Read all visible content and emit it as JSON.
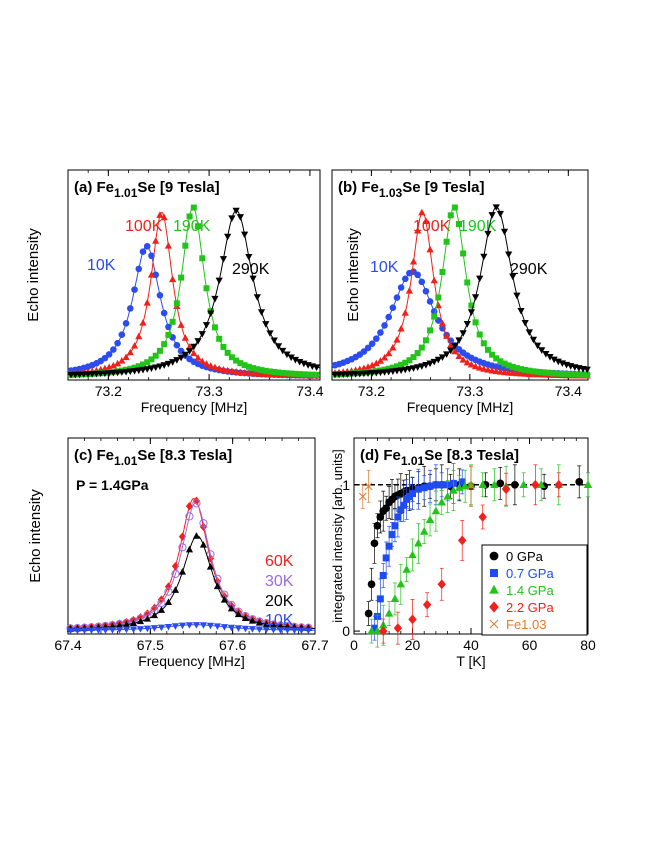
{
  "colors": {
    "k10": "#2a4cf0",
    "k100": "#f0201a",
    "k190": "#22c41a",
    "k290": "#000000",
    "k60": "#f0201a",
    "k30": "#9a6be0",
    "k20": "#000000",
    "p0": "#000000",
    "p07": "#1f4cf0",
    "p14": "#22c41a",
    "p22": "#f0201a",
    "fe103": "#e07a30"
  },
  "chart_data": [
    {
      "id": "a",
      "type": "line",
      "title_pre": "(a) Fe",
      "title_sub": "1.01",
      "title_post": "Se [9 Tesla]",
      "xlabel": "Frequency [MHz]",
      "ylabel": "Echo intensity",
      "xlim": [
        73.16,
        73.41
      ],
      "ylim": [
        0,
        1.05
      ],
      "xticks": [
        "73.2",
        "73.3",
        "73.4"
      ],
      "xtick_values": [
        73.2,
        73.3,
        73.4
      ],
      "series": [
        {
          "name": "10K",
          "center": 73.238,
          "width": 0.017,
          "peak": 0.77,
          "marker": "circle",
          "color_key": "k10"
        },
        {
          "name": "100K",
          "center": 73.253,
          "width": 0.013,
          "peak": 0.97,
          "marker": "triangle-up",
          "color_key": "k100"
        },
        {
          "name": "190K",
          "center": 73.284,
          "width": 0.014,
          "peak": 1.0,
          "marker": "square",
          "color_key": "k190"
        },
        {
          "name": "290K",
          "center": 73.327,
          "width": 0.02,
          "peak": 0.98,
          "marker": "triangle-down",
          "color_key": "k290"
        }
      ]
    },
    {
      "id": "b",
      "type": "line",
      "title_pre": "(b) Fe",
      "title_sub": "1.03",
      "title_post": "Se [9 Tesla]",
      "xlabel": "Frequency [MHz]",
      "ylabel": "Echo intensity",
      "xlim": [
        73.16,
        73.42
      ],
      "ylim": [
        0,
        1.05
      ],
      "xticks": [
        "73.2",
        "73.3",
        "73.4"
      ],
      "xtick_values": [
        73.2,
        73.3,
        73.4
      ],
      "series": [
        {
          "name": "10K",
          "center": 73.242,
          "width": 0.028,
          "peak": 0.62,
          "marker": "circle",
          "color_key": "k10"
        },
        {
          "name": "100K",
          "center": 73.252,
          "width": 0.014,
          "peak": 0.97,
          "marker": "triangle-up",
          "color_key": "k100"
        },
        {
          "name": "190K",
          "center": 73.284,
          "width": 0.015,
          "peak": 1.0,
          "marker": "square",
          "color_key": "k190"
        },
        {
          "name": "290K",
          "center": 73.327,
          "width": 0.02,
          "peak": 1.0,
          "marker": "triangle-down",
          "color_key": "k290"
        }
      ]
    },
    {
      "id": "c",
      "type": "line",
      "title_pre": "(c) Fe",
      "title_sub": "1.01",
      "title_post": "Se [8.3 Tesla]",
      "annotation": "P = 1.4GPa",
      "xlabel": "Frequency [MHz]",
      "ylabel": "Echo intensity",
      "xlim": [
        67.4,
        67.7
      ],
      "ylim": [
        0,
        1.0
      ],
      "xticks": [
        "67.4",
        "67.5",
        "67.6",
        "67.7"
      ],
      "xtick_values": [
        67.4,
        67.5,
        67.6,
        67.7
      ],
      "series": [
        {
          "name": "60K",
          "center": 67.553,
          "width": 0.022,
          "peak": 0.85,
          "marker": "diamond",
          "color_key": "k60"
        },
        {
          "name": "30K",
          "center": 67.555,
          "width": 0.022,
          "peak": 0.82,
          "marker": "open-circle",
          "color_key": "k30"
        },
        {
          "name": "20K",
          "center": 67.557,
          "width": 0.023,
          "peak": 0.61,
          "marker": "triangle-up",
          "color_key": "k20"
        },
        {
          "name": "10K",
          "center": 67.555,
          "width": 0.05,
          "peak": 0.04,
          "marker": "triangle-down",
          "color_key": "k10"
        }
      ]
    },
    {
      "id": "d",
      "type": "scatter",
      "title_pre": "(d) Fe",
      "title_sub": "1.01",
      "title_post": "Se [8.3 Tesla]",
      "xlabel": "T [K]",
      "ylabel": "integrated intensity [arb. units]",
      "xlim": [
        0,
        80
      ],
      "ylim": [
        -0.02,
        1.32
      ],
      "xticks": [
        "0",
        "20",
        "40",
        "60",
        "80"
      ],
      "xtick_values": [
        0,
        20,
        40,
        60,
        80
      ],
      "yticks": [
        "0",
        "1"
      ],
      "ytick_values": [
        0,
        1
      ],
      "reference_line": 1,
      "series": [
        {
          "name": "0 GPa",
          "marker": "circle",
          "color_key": "p0",
          "x": [
            5,
            6,
            7,
            8,
            9,
            10,
            11,
            12,
            13,
            14,
            15,
            16,
            17,
            18,
            19,
            20,
            22,
            24,
            26,
            28,
            30,
            33,
            36,
            40,
            45,
            50,
            55,
            65,
            77
          ],
          "y": [
            0.12,
            0.32,
            0.6,
            0.72,
            0.78,
            0.82,
            0.84,
            0.88,
            0.9,
            0.92,
            0.93,
            0.94,
            0.95,
            0.96,
            0.96,
            0.97,
            0.98,
            0.99,
            0.99,
            1.0,
            1.0,
            0.99,
            1.0,
            0.99,
            1.0,
            1.01,
            1.0,
            0.99,
            1.02
          ]
        },
        {
          "name": "0.7 GPa",
          "marker": "square",
          "color_key": "p07",
          "x": [
            7,
            8,
            9,
            10,
            11,
            12,
            13,
            14,
            15,
            16,
            17,
            18,
            19,
            20,
            22,
            24,
            26,
            28,
            30,
            32,
            34,
            37
          ],
          "y": [
            0.02,
            0.1,
            0.22,
            0.38,
            0.5,
            0.58,
            0.66,
            0.72,
            0.78,
            0.83,
            0.86,
            0.9,
            0.92,
            0.94,
            0.97,
            0.98,
            0.99,
            1.0,
            1.0,
            1.0,
            1.01,
            1.02
          ]
        },
        {
          "name": "1.4 GPa",
          "marker": "triangle-up",
          "color_key": "p14",
          "x": [
            6,
            8,
            10,
            12,
            14,
            16,
            18,
            20,
            22,
            24,
            26,
            28,
            30,
            32,
            34,
            36,
            38,
            40,
            44,
            48,
            52,
            58,
            64,
            70,
            80
          ],
          "y": [
            0.0,
            0.0,
            0.04,
            0.12,
            0.22,
            0.32,
            0.42,
            0.52,
            0.6,
            0.68,
            0.76,
            0.82,
            0.88,
            0.92,
            0.96,
            0.98,
            0.99,
            1.0,
            1.0,
            1.0,
            0.99,
            1.0,
            1.0,
            1.0,
            1.0
          ]
        },
        {
          "name": "2.2 GPa",
          "marker": "diamond",
          "color_key": "p22",
          "x": [
            10,
            15,
            20,
            25,
            30,
            37,
            44,
            52,
            62,
            70
          ],
          "y": [
            0.0,
            0.02,
            0.08,
            0.18,
            0.32,
            0.62,
            0.78,
            0.97,
            1.0,
            1.0
          ]
        },
        {
          "name": "Fe1.03",
          "marker": "cross",
          "color_key": "fe103",
          "x": [
            3,
            5,
            40
          ],
          "y": [
            0.92,
            0.99,
            0.99
          ]
        }
      ]
    }
  ]
}
